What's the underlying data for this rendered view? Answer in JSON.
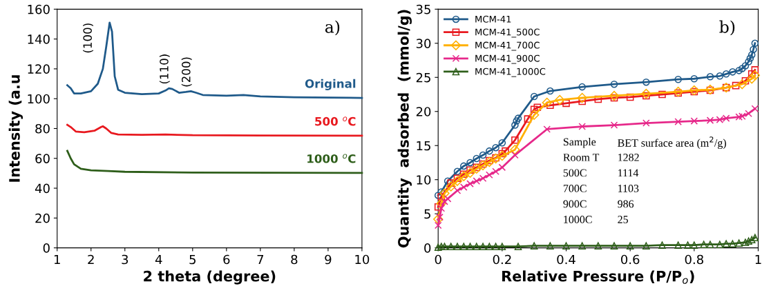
{
  "chart_data": [
    {
      "type": "line",
      "xlabel": "2 theta (degree)",
      "ylabel": "Intensity (a.u",
      "xlim": [
        1,
        10
      ],
      "xticks": [
        1,
        2,
        3,
        4,
        5,
        6,
        7,
        8,
        9,
        10
      ],
      "ylim": [
        0,
        160
      ],
      "yticks": [
        0,
        20,
        40,
        60,
        80,
        100,
        120,
        140,
        160
      ],
      "grid": false,
      "legend": false,
      "marker": "none",
      "line_style": "solid",
      "annotations": [
        {
          "text": "(100)",
          "x": 2.55,
          "y": 151
        },
        {
          "text": "(110)",
          "x": 4.3,
          "y": 107
        },
        {
          "text": "(200)",
          "x": 4.95,
          "y": 105
        },
        "a)"
      ],
      "series": [
        {
          "name": "Original",
          "color": "#1f5a8a",
          "x": [
            1.3,
            1.4,
            1.5,
            1.7,
            2.0,
            2.2,
            2.35,
            2.45,
            2.55,
            2.62,
            2.7,
            2.8,
            3.0,
            3.5,
            4.0,
            4.2,
            4.3,
            4.4,
            4.6,
            4.8,
            4.95,
            5.1,
            5.3,
            6.0,
            6.5,
            7.0,
            8.0,
            10
          ],
          "values": [
            109,
            107,
            103.5,
            103.5,
            105,
            110,
            120,
            135,
            151,
            145,
            115,
            106,
            104,
            103,
            103.5,
            105.5,
            107,
            106.5,
            104,
            104.5,
            105,
            104,
            102.5,
            102,
            102.5,
            101.5,
            101,
            100.5
          ]
        },
        {
          "name": "500 $^{o}$C",
          "color": "#e8191f",
          "x": [
            1.3,
            1.4,
            1.55,
            1.8,
            2.1,
            2.3,
            2.35,
            2.45,
            2.6,
            2.8,
            3.5,
            4.2,
            5,
            7,
            10
          ],
          "values": [
            82.5,
            81,
            78,
            77.5,
            78.5,
            81,
            81.5,
            80,
            77,
            76,
            75.8,
            76,
            75.5,
            75.3,
            75.2
          ]
        },
        {
          "name": "1000 $^{o}$C",
          "color": "#2e5e1a",
          "x": [
            1.3,
            1.4,
            1.5,
            1.7,
            2.0,
            2.5,
            3,
            5,
            10
          ],
          "values": [
            65,
            60,
            56,
            53,
            52,
            51.5,
            51,
            50.5,
            50.2
          ]
        }
      ]
    },
    {
      "type": "line",
      "xlabel": "Relative Pressure (P/P$_{o}$)",
      "ylabel": "Quantity  adsorbed  (mmol/g)",
      "xlim": [
        0,
        1
      ],
      "xticks": [
        0,
        0.2,
        0.4,
        0.6,
        0.8,
        1
      ],
      "ylim": [
        0,
        35
      ],
      "yticks": [
        0,
        5,
        10,
        15,
        20,
        25,
        30,
        35
      ],
      "grid": false,
      "legend": "top left",
      "line_style": "solid",
      "annotations": [
        "b)",
        "Sample",
        "BET surface area (m$^{2}$/g)",
        "Room T",
        "1282",
        "500C",
        "1114",
        "700C",
        "1103",
        "900C",
        "986",
        "1000C",
        "25"
      ],
      "series": [
        {
          "name": "MCM-41",
          "color": "#1f5a8a",
          "marker": "circle",
          "x": [
            0,
            0.01,
            0.03,
            0.06,
            0.08,
            0.1,
            0.12,
            0.14,
            0.16,
            0.18,
            0.2,
            0.24,
            0.245,
            0.25,
            0.3,
            0.35,
            0.45,
            0.55,
            0.65,
            0.75,
            0.8,
            0.85,
            0.88,
            0.9,
            0.92,
            0.94,
            0.95,
            0.96,
            0.97,
            0.975,
            0.98,
            0.985,
            0.99
          ],
          "values": [
            7.7,
            8.2,
            9.8,
            11.2,
            12,
            12.5,
            13.1,
            13.6,
            14.2,
            14.7,
            15.4,
            18,
            18.6,
            19,
            22.2,
            23,
            23.6,
            24,
            24.3,
            24.7,
            24.8,
            25.1,
            25.2,
            25.5,
            25.8,
            26,
            26.3,
            26.7,
            27.3,
            27.8,
            28.3,
            29.1,
            30
          ]
        },
        {
          "name": "MCM-41_500C",
          "color": "#e8191f",
          "marker": "square",
          "x": [
            0,
            0.01,
            0.04,
            0.06,
            0.08,
            0.1,
            0.12,
            0.14,
            0.16,
            0.18,
            0.2,
            0.21,
            0.24,
            0.28,
            0.3,
            0.31,
            0.35,
            0.4,
            0.45,
            0.5,
            0.55,
            0.6,
            0.65,
            0.7,
            0.75,
            0.8,
            0.85,
            0.9,
            0.93,
            0.96,
            0.98,
            0.99
          ],
          "values": [
            6,
            7.5,
            9.5,
            10.2,
            10.8,
            11.4,
            11.8,
            12.3,
            12.8,
            13.2,
            13.8,
            14.2,
            15.8,
            18.9,
            20.3,
            20.6,
            20.9,
            21.2,
            21.5,
            21.8,
            22,
            22.1,
            22.3,
            22.5,
            22.7,
            22.9,
            23.1,
            23.5,
            23.8,
            24.5,
            25.5,
            26.1
          ]
        },
        {
          "name": "MCM-41_700C",
          "color": "#ffb000",
          "marker": "diamond",
          "x": [
            0,
            0.01,
            0.02,
            0.04,
            0.06,
            0.08,
            0.1,
            0.12,
            0.14,
            0.16,
            0.18,
            0.2,
            0.24,
            0.3,
            0.34,
            0.38,
            0.45,
            0.55,
            0.65,
            0.75,
            0.8,
            0.85,
            0.9,
            0.95,
            0.98,
            0.99
          ],
          "values": [
            4.2,
            6.5,
            8,
            9,
            9.8,
            10.5,
            11,
            11.6,
            12.1,
            12.6,
            13.1,
            13.5,
            14.4,
            19.5,
            21.3,
            21.7,
            22,
            22.3,
            22.6,
            22.9,
            23.1,
            23.2,
            23.5,
            24,
            24.8,
            25.3
          ]
        },
        {
          "name": "MCM-41_900C",
          "color": "#e6288a",
          "marker": "cross",
          "x": [
            0,
            0.005,
            0.01,
            0.02,
            0.03,
            0.06,
            0.08,
            0.1,
            0.12,
            0.14,
            0.16,
            0.18,
            0.2,
            0.24,
            0.34,
            0.45,
            0.55,
            0.65,
            0.75,
            0.8,
            0.85,
            0.88,
            0.9,
            0.94,
            0.95,
            0.97,
            0.99
          ],
          "values": [
            3.3,
            4.5,
            5.8,
            6.8,
            7.2,
            8.4,
            8.9,
            9.4,
            9.8,
            10.2,
            10.7,
            11.2,
            11.8,
            13.6,
            17.4,
            17.8,
            18,
            18.3,
            18.5,
            18.6,
            18.7,
            18.8,
            19,
            19.2,
            19.3,
            19.7,
            20.4
          ]
        },
        {
          "name": "MCM-41_1000C",
          "color": "#2e5e1a",
          "marker": "triangle",
          "x": [
            0,
            0.01,
            0.02,
            0.04,
            0.06,
            0.08,
            0.1,
            0.12,
            0.14,
            0.16,
            0.18,
            0.2,
            0.25,
            0.3,
            0.35,
            0.4,
            0.45,
            0.5,
            0.55,
            0.6,
            0.65,
            0.7,
            0.75,
            0.78,
            0.8,
            0.83,
            0.85,
            0.88,
            0.9,
            0.92,
            0.94,
            0.96,
            0.97,
            0.98,
            0.99
          ],
          "values": [
            0.1,
            0.2,
            0.2,
            0.2,
            0.2,
            0.2,
            0.2,
            0.2,
            0.2,
            0.2,
            0.2,
            0.2,
            0.2,
            0.3,
            0.3,
            0.3,
            0.3,
            0.3,
            0.3,
            0.3,
            0.3,
            0.4,
            0.4,
            0.4,
            0.4,
            0.5,
            0.5,
            0.5,
            0.6,
            0.6,
            0.7,
            0.8,
            1.0,
            1.2,
            1.5
          ]
        }
      ]
    }
  ]
}
